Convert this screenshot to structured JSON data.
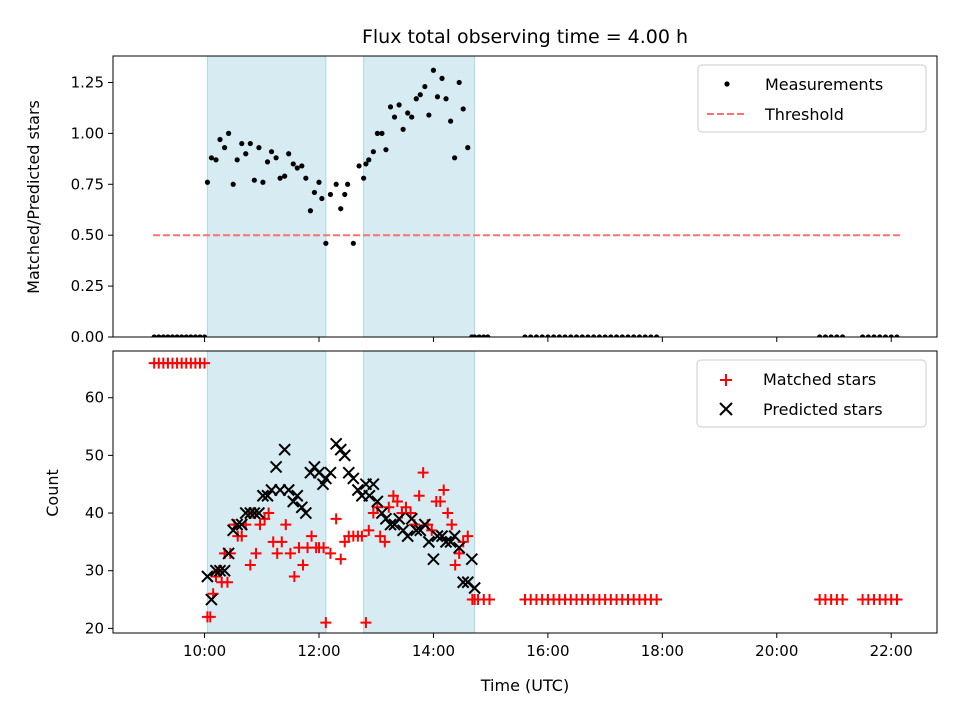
{
  "chart_data": [
    {
      "type": "scatter",
      "title": "Flux total observing time = 4.00 h",
      "xlabel": "",
      "ylabel": "Matched/Predicted stars",
      "xlim": [
        8.4,
        22.8
      ],
      "ylim": [
        0,
        1.38
      ],
      "yticks": [
        0.0,
        0.25,
        0.5,
        0.75,
        1.0,
        1.25
      ],
      "ytick_labels": [
        "0.00",
        "0.25",
        "0.50",
        "0.75",
        "1.00",
        "1.25"
      ],
      "xticks": [
        10,
        12,
        14,
        16,
        18,
        20,
        22
      ],
      "shaded_regions": [
        [
          10.05,
          12.12
        ],
        [
          12.78,
          14.72
        ]
      ],
      "shade_color": "#add8e6",
      "legend_position": "top-right",
      "series": [
        {
          "name": "Measurements",
          "kind": "points",
          "color": "#000000",
          "x": [
            9.12,
            9.2,
            9.28,
            9.36,
            9.44,
            9.52,
            9.6,
            9.68,
            9.76,
            9.84,
            9.92,
            10.0,
            10.05,
            10.12,
            10.2,
            10.27,
            10.35,
            10.42,
            10.5,
            10.57,
            10.65,
            10.72,
            10.8,
            10.87,
            10.95,
            11.02,
            11.1,
            11.17,
            11.25,
            11.32,
            11.4,
            11.47,
            11.55,
            11.62,
            11.7,
            11.77,
            11.85,
            11.92,
            12.0,
            12.05,
            12.12,
            12.2,
            12.3,
            12.38,
            12.45,
            12.5,
            12.6,
            12.7,
            12.78,
            12.82,
            12.87,
            12.95,
            13.02,
            13.1,
            13.17,
            13.25,
            13.32,
            13.4,
            13.47,
            13.55,
            13.62,
            13.7,
            13.77,
            13.85,
            13.92,
            14.0,
            14.07,
            14.15,
            14.22,
            14.3,
            14.37,
            14.45,
            14.52,
            14.6,
            14.67,
            14.72,
            14.8,
            14.88,
            14.95,
            15.6,
            15.7,
            15.8,
            15.9,
            16.0,
            16.1,
            16.2,
            16.3,
            16.4,
            16.5,
            16.6,
            16.7,
            16.8,
            16.9,
            17.0,
            17.1,
            17.2,
            17.3,
            17.4,
            17.5,
            17.6,
            17.7,
            17.8,
            17.9,
            20.75,
            20.85,
            20.95,
            21.05,
            21.15,
            21.5,
            21.6,
            21.7,
            21.8,
            21.9,
            22.0,
            22.1
          ],
          "y": [
            0,
            0,
            0,
            0,
            0,
            0,
            0,
            0,
            0,
            0,
            0,
            0,
            0.76,
            0.88,
            0.87,
            0.97,
            0.93,
            1.0,
            0.75,
            0.87,
            0.95,
            0.9,
            0.95,
            0.77,
            0.93,
            0.76,
            0.86,
            0.91,
            0.88,
            0.78,
            0.79,
            0.9,
            0.85,
            0.83,
            0.84,
            0.78,
            0.62,
            0.71,
            0.76,
            0.68,
            0.46,
            0.7,
            0.75,
            0.63,
            0.7,
            0.75,
            0.46,
            0.84,
            0.78,
            0.85,
            0.87,
            0.91,
            1.0,
            1.0,
            0.92,
            1.13,
            1.08,
            1.14,
            1.02,
            1.1,
            1.08,
            1.17,
            1.19,
            1.23,
            1.09,
            1.31,
            1.18,
            1.27,
            1.17,
            1.06,
            0.88,
            1.25,
            1.12,
            0.93,
            0,
            0,
            0,
            0,
            0,
            0,
            0,
            0,
            0,
            0,
            0,
            0,
            0,
            0,
            0,
            0,
            0,
            0,
            0,
            0,
            0,
            0,
            0,
            0,
            0,
            0,
            0,
            0,
            0,
            0,
            0,
            0,
            0,
            0,
            0,
            0,
            0,
            0,
            0,
            0,
            0
          ]
        },
        {
          "name": "Threshold",
          "kind": "dashed-line",
          "color": "#ff7070",
          "x": [
            9.1,
            22.2
          ],
          "y": [
            0.5,
            0.5
          ]
        }
      ]
    },
    {
      "type": "scatter",
      "title": "",
      "xlabel": "Time (UTC)",
      "ylabel": "Count",
      "xlim": [
        8.4,
        22.8
      ],
      "ylim": [
        19.2,
        68.1
      ],
      "yticks": [
        20,
        30,
        40,
        50,
        60
      ],
      "ytick_labels": [
        "20",
        "30",
        "40",
        "50",
        "60"
      ],
      "xticks": [
        10,
        12,
        14,
        16,
        18,
        20,
        22
      ],
      "xtick_labels": [
        "10:00",
        "12:00",
        "14:00",
        "16:00",
        "18:00",
        "20:00",
        "22:00"
      ],
      "shaded_regions": [
        [
          10.05,
          12.12
        ],
        [
          12.78,
          14.72
        ]
      ],
      "shade_color": "#add8e6",
      "legend_position": "top-right",
      "series": [
        {
          "name": "Matched stars",
          "kind": "plus",
          "color": "#ff0000",
          "x": [
            9.12,
            9.2,
            9.28,
            9.36,
            9.44,
            9.52,
            9.6,
            9.68,
            9.76,
            9.84,
            9.92,
            10.0,
            10.05,
            10.1,
            10.15,
            10.2,
            10.25,
            10.3,
            10.35,
            10.4,
            10.45,
            10.52,
            10.58,
            10.65,
            10.72,
            10.8,
            10.85,
            10.9,
            10.97,
            11.05,
            11.12,
            11.2,
            11.27,
            11.35,
            11.42,
            11.5,
            11.57,
            11.65,
            11.72,
            11.8,
            11.87,
            11.95,
            12.0,
            12.08,
            12.12,
            12.2,
            12.3,
            12.38,
            12.45,
            12.52,
            12.6,
            12.68,
            12.75,
            12.82,
            12.87,
            12.95,
            13.02,
            13.07,
            13.15,
            13.22,
            13.3,
            13.37,
            13.45,
            13.52,
            13.6,
            13.67,
            13.75,
            13.82,
            13.9,
            13.97,
            14.05,
            14.12,
            14.18,
            14.25,
            14.32,
            14.38,
            14.45,
            14.52,
            14.6,
            14.68,
            14.72,
            14.78,
            14.88,
            14.98,
            15.6,
            15.7,
            15.8,
            15.9,
            16.0,
            16.1,
            16.2,
            16.3,
            16.4,
            16.5,
            16.6,
            16.7,
            16.8,
            16.9,
            17.0,
            17.1,
            17.2,
            17.3,
            17.4,
            17.5,
            17.6,
            17.7,
            17.8,
            17.9,
            20.75,
            20.85,
            20.95,
            21.05,
            21.15,
            21.5,
            21.6,
            21.7,
            21.8,
            21.9,
            22.0,
            22.1
          ],
          "y": [
            66,
            66,
            66,
            66,
            66,
            66,
            66,
            66,
            66,
            66,
            66,
            66,
            22,
            22,
            26,
            29,
            30,
            28,
            33,
            28,
            33,
            38,
            36,
            36,
            38,
            31,
            40,
            33,
            38,
            39,
            40,
            35,
            33,
            35,
            38,
            33,
            29,
            34,
            31,
            34,
            36,
            34,
            34,
            34,
            21,
            33,
            39,
            32,
            35,
            36,
            36,
            36,
            36,
            21,
            37,
            40,
            41,
            36,
            35,
            41,
            43,
            42,
            40,
            41,
            40,
            38,
            43,
            47,
            38,
            37,
            42,
            42,
            44,
            40,
            38,
            31,
            33,
            35,
            36,
            25,
            25,
            25,
            25,
            25,
            25,
            25,
            25,
            25,
            25,
            25,
            25,
            25,
            25,
            25,
            25,
            25,
            25,
            25,
            25,
            25,
            25,
            25,
            25,
            25,
            25,
            25,
            25,
            25,
            25,
            25,
            25,
            25,
            25,
            25,
            25,
            25,
            25,
            25,
            25,
            25
          ]
        },
        {
          "name": "Predicted stars",
          "kind": "x",
          "color": "#000000",
          "x": [
            10.05,
            10.12,
            10.2,
            10.27,
            10.35,
            10.42,
            10.5,
            10.57,
            10.65,
            10.72,
            10.8,
            10.87,
            10.95,
            11.02,
            11.1,
            11.17,
            11.25,
            11.32,
            11.4,
            11.47,
            11.55,
            11.62,
            11.7,
            11.77,
            11.85,
            11.92,
            12.0,
            12.07,
            12.12,
            12.2,
            12.3,
            12.38,
            12.45,
            12.52,
            12.6,
            12.68,
            12.75,
            12.82,
            12.88,
            12.95,
            13.02,
            13.1,
            13.17,
            13.25,
            13.32,
            13.4,
            13.47,
            13.55,
            13.62,
            13.7,
            13.77,
            13.85,
            13.92,
            14.0,
            14.07,
            14.15,
            14.22,
            14.3,
            14.37,
            14.45,
            14.52,
            14.6,
            14.67,
            14.72
          ],
          "y": [
            29,
            25,
            30,
            30,
            30,
            33,
            37,
            38,
            38,
            40,
            40,
            40,
            40,
            43,
            43,
            44,
            48,
            44,
            51,
            44,
            42,
            43,
            41,
            40,
            47,
            48,
            47,
            45,
            46,
            47,
            52,
            51,
            50,
            47,
            46,
            44,
            43,
            45,
            43,
            45,
            42,
            40,
            39,
            38,
            38,
            39,
            37,
            36,
            39,
            37,
            37,
            38,
            35,
            32,
            36,
            36,
            35,
            35,
            36,
            34,
            28,
            28,
            32,
            27
          ]
        }
      ]
    }
  ]
}
